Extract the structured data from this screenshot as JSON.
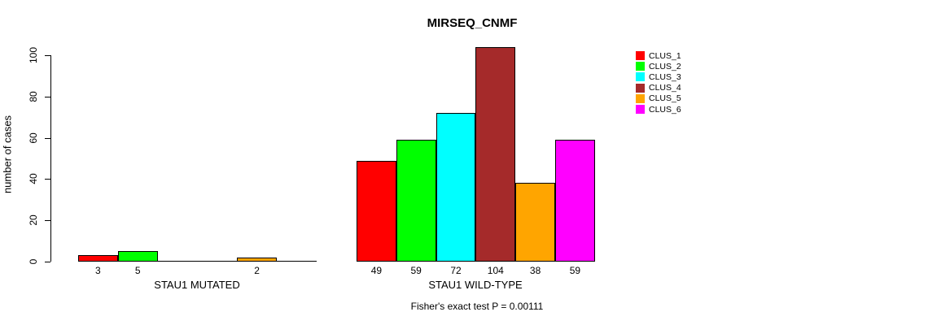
{
  "title": "MIRSEQ_CNMF",
  "subtitle": "Fisher's exact test P = 0.00111",
  "chart_data": {
    "type": "bar",
    "grouped": true,
    "title": "MIRSEQ_CNMF",
    "subtitle": "Fisher's exact test P = 0.00111",
    "xlabel": "",
    "ylabel": "number of cases",
    "categories": [
      "STAU1 MUTATED",
      "STAU1 WILD-TYPE"
    ],
    "series": [
      {
        "name": "CLUS_1",
        "color": "#FF0000",
        "values": [
          3,
          49
        ]
      },
      {
        "name": "CLUS_2",
        "color": "#00FF00",
        "values": [
          5,
          59
        ]
      },
      {
        "name": "CLUS_3",
        "color": "#00FFFF",
        "values": [
          0,
          72
        ]
      },
      {
        "name": "CLUS_4",
        "color": "#A52A2A",
        "values": [
          0,
          104
        ]
      },
      {
        "name": "CLUS_5",
        "color": "#FFA500",
        "values": [
          2,
          38
        ]
      },
      {
        "name": "CLUS_6",
        "color": "#FF00FF",
        "values": [
          0,
          59
        ]
      }
    ],
    "bar_value_labels": [
      [
        "3",
        "5",
        "",
        "",
        "2",
        ""
      ],
      [
        "49",
        "59",
        "72",
        "104",
        "38",
        "59"
      ]
    ],
    "yticks": [
      0,
      20,
      40,
      60,
      80,
      100
    ],
    "ylim": [
      0,
      100
    ],
    "grid": false,
    "legend_position": "right",
    "legend_entries": [
      "CLUS_1",
      "CLUS_2",
      "CLUS_3",
      "CLUS_4",
      "CLUS_5",
      "CLUS_6"
    ]
  }
}
